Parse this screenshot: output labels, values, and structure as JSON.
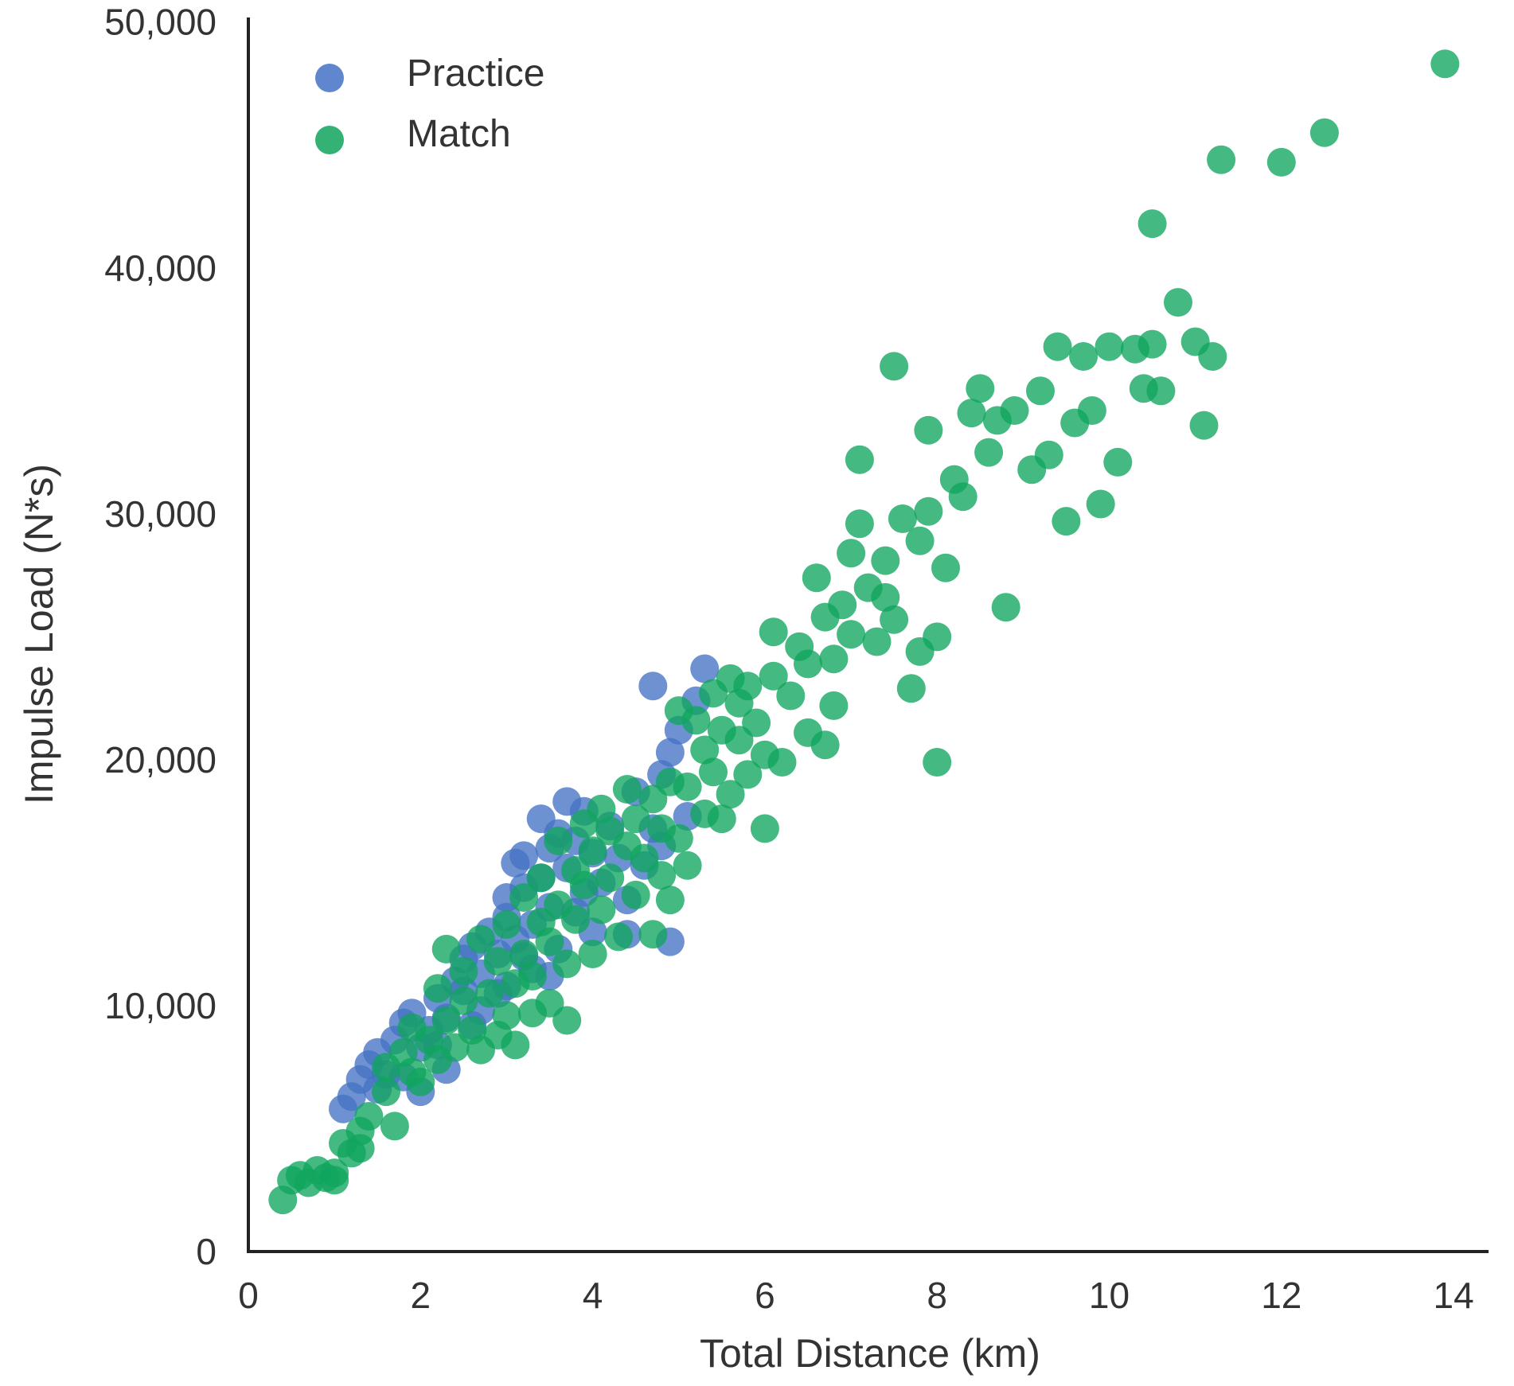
{
  "chart_data": {
    "type": "scatter",
    "xlabel": "Total Distance (km)",
    "ylabel": "Impulse Load (N*s)",
    "xlim": [
      0,
      14.6
    ],
    "ylim": [
      0,
      50800
    ],
    "x_ticks": [
      "0",
      "2",
      "4",
      "6",
      "8",
      "10",
      "12",
      "14"
    ],
    "y_ticks": [
      "0",
      "10,000",
      "20,000",
      "30,000",
      "40,000",
      "50,000"
    ],
    "x_tick_values": [
      0,
      2,
      4,
      6,
      8,
      10,
      12,
      14
    ],
    "y_tick_values": [
      0,
      10000,
      20000,
      30000,
      40000,
      50000
    ],
    "grid": false,
    "legend_position": "top-left",
    "series": [
      {
        "name": "Practice",
        "color": "#4472c4",
        "points": [
          [
            1.1,
            5800
          ],
          [
            1.2,
            6300
          ],
          [
            1.3,
            7000
          ],
          [
            1.4,
            7600
          ],
          [
            1.5,
            6600
          ],
          [
            1.5,
            8100
          ],
          [
            1.6,
            7200
          ],
          [
            1.7,
            8600
          ],
          [
            1.8,
            9300
          ],
          [
            1.9,
            9700
          ],
          [
            2.0,
            8300
          ],
          [
            2.0,
            6500
          ],
          [
            2.1,
            9000
          ],
          [
            2.2,
            10300
          ],
          [
            2.3,
            9500
          ],
          [
            2.3,
            7400
          ],
          [
            2.4,
            11000
          ],
          [
            2.5,
            10600
          ],
          [
            2.5,
            11900
          ],
          [
            2.6,
            12400
          ],
          [
            2.7,
            11300
          ],
          [
            2.7,
            9800
          ],
          [
            2.8,
            13000
          ],
          [
            2.9,
            12100
          ],
          [
            2.9,
            10500
          ],
          [
            3.0,
            14400
          ],
          [
            3.0,
            13600
          ],
          [
            3.1,
            15800
          ],
          [
            3.1,
            12700
          ],
          [
            3.2,
            16100
          ],
          [
            3.2,
            14800
          ],
          [
            3.3,
            13300
          ],
          [
            3.3,
            11500
          ],
          [
            3.4,
            17600
          ],
          [
            3.4,
            15200
          ],
          [
            3.5,
            16400
          ],
          [
            3.5,
            14000
          ],
          [
            3.6,
            17000
          ],
          [
            3.6,
            12300
          ],
          [
            3.7,
            18300
          ],
          [
            3.7,
            15600
          ],
          [
            3.8,
            16700
          ],
          [
            3.8,
            13800
          ],
          [
            3.9,
            17900
          ],
          [
            3.9,
            14600
          ],
          [
            4.0,
            16200
          ],
          [
            4.1,
            15000
          ],
          [
            4.2,
            17300
          ],
          [
            4.3,
            16000
          ],
          [
            4.4,
            14300
          ],
          [
            4.5,
            18700
          ],
          [
            4.6,
            15700
          ],
          [
            4.7,
            23000
          ],
          [
            4.7,
            17200
          ],
          [
            4.8,
            19400
          ],
          [
            4.8,
            16500
          ],
          [
            4.9,
            20300
          ],
          [
            4.9,
            12600
          ],
          [
            5.0,
            21200
          ],
          [
            5.1,
            17700
          ],
          [
            5.2,
            22400
          ],
          [
            5.3,
            23700
          ],
          [
            3.0,
            10800
          ],
          [
            2.6,
            9200
          ],
          [
            2.2,
            8400
          ],
          [
            1.8,
            7100
          ],
          [
            3.5,
            11200
          ],
          [
            4.0,
            13000
          ],
          [
            4.4,
            12900
          ],
          [
            3.2,
            12000
          ]
        ]
      },
      {
        "name": "Match",
        "color": "#10a55e",
        "points": [
          [
            0.4,
            2100
          ],
          [
            0.5,
            2900
          ],
          [
            0.6,
            3100
          ],
          [
            0.7,
            2800
          ],
          [
            0.8,
            3300
          ],
          [
            0.9,
            3000
          ],
          [
            1.0,
            3200
          ],
          [
            1.0,
            2900
          ],
          [
            1.1,
            4400
          ],
          [
            1.2,
            4000
          ],
          [
            1.3,
            4900
          ],
          [
            1.3,
            4200
          ],
          [
            1.4,
            5500
          ],
          [
            1.6,
            6500
          ],
          [
            1.6,
            7500
          ],
          [
            1.7,
            5100
          ],
          [
            1.8,
            8100
          ],
          [
            1.9,
            7300
          ],
          [
            1.9,
            9100
          ],
          [
            2.0,
            6900
          ],
          [
            2.1,
            8600
          ],
          [
            2.2,
            7800
          ],
          [
            2.2,
            10700
          ],
          [
            2.3,
            9400
          ],
          [
            2.3,
            12300
          ],
          [
            2.4,
            8300
          ],
          [
            2.5,
            10200
          ],
          [
            2.5,
            11400
          ],
          [
            2.6,
            9000
          ],
          [
            2.7,
            12700
          ],
          [
            2.7,
            8200
          ],
          [
            2.8,
            10500
          ],
          [
            2.9,
            11800
          ],
          [
            2.9,
            8800
          ],
          [
            3.0,
            9600
          ],
          [
            3.0,
            13300
          ],
          [
            3.1,
            10900
          ],
          [
            3.1,
            8400
          ],
          [
            3.2,
            12100
          ],
          [
            3.2,
            14400
          ],
          [
            3.3,
            11200
          ],
          [
            3.3,
            9700
          ],
          [
            3.4,
            13400
          ],
          [
            3.4,
            15200
          ],
          [
            3.5,
            12600
          ],
          [
            3.5,
            10100
          ],
          [
            3.6,
            14100
          ],
          [
            3.6,
            16700
          ],
          [
            3.7,
            11700
          ],
          [
            3.7,
            9400
          ],
          [
            3.8,
            15500
          ],
          [
            3.8,
            13500
          ],
          [
            3.9,
            17400
          ],
          [
            3.9,
            14900
          ],
          [
            4.0,
            12100
          ],
          [
            4.0,
            16300
          ],
          [
            4.1,
            18000
          ],
          [
            4.1,
            13900
          ],
          [
            4.2,
            15200
          ],
          [
            4.2,
            17100
          ],
          [
            4.3,
            12800
          ],
          [
            4.4,
            16500
          ],
          [
            4.4,
            18800
          ],
          [
            4.5,
            14500
          ],
          [
            4.5,
            17600
          ],
          [
            4.6,
            16000
          ],
          [
            4.7,
            18400
          ],
          [
            4.7,
            12900
          ],
          [
            4.8,
            15300
          ],
          [
            4.8,
            17200
          ],
          [
            4.9,
            19100
          ],
          [
            4.9,
            14300
          ],
          [
            5.0,
            16800
          ],
          [
            5.0,
            22000
          ],
          [
            5.1,
            18900
          ],
          [
            5.1,
            15700
          ],
          [
            5.2,
            21600
          ],
          [
            5.3,
            20400
          ],
          [
            5.3,
            17800
          ],
          [
            5.4,
            22700
          ],
          [
            5.4,
            19500
          ],
          [
            5.5,
            21200
          ],
          [
            5.5,
            17600
          ],
          [
            5.6,
            23300
          ],
          [
            5.6,
            18600
          ],
          [
            5.7,
            20800
          ],
          [
            5.7,
            22300
          ],
          [
            5.8,
            19400
          ],
          [
            5.8,
            23000
          ],
          [
            5.9,
            21500
          ],
          [
            6.0,
            17200
          ],
          [
            6.0,
            20200
          ],
          [
            6.1,
            25200
          ],
          [
            6.1,
            23400
          ],
          [
            6.2,
            19900
          ],
          [
            6.3,
            22600
          ],
          [
            6.4,
            24600
          ],
          [
            6.5,
            23900
          ],
          [
            6.5,
            21100
          ],
          [
            6.6,
            27400
          ],
          [
            6.7,
            25800
          ],
          [
            6.7,
            20600
          ],
          [
            6.8,
            24100
          ],
          [
            6.8,
            22200
          ],
          [
            6.9,
            26300
          ],
          [
            7.0,
            28400
          ],
          [
            7.0,
            25100
          ],
          [
            7.1,
            32200
          ],
          [
            7.1,
            29600
          ],
          [
            7.2,
            27000
          ],
          [
            7.3,
            24800
          ],
          [
            7.4,
            28100
          ],
          [
            7.4,
            26600
          ],
          [
            7.5,
            36000
          ],
          [
            7.5,
            25700
          ],
          [
            7.6,
            29800
          ],
          [
            7.7,
            22900
          ],
          [
            7.8,
            24400
          ],
          [
            7.8,
            28900
          ],
          [
            7.9,
            33400
          ],
          [
            7.9,
            30100
          ],
          [
            8.0,
            25000
          ],
          [
            8.0,
            19900
          ],
          [
            8.1,
            27800
          ],
          [
            8.2,
            31400
          ],
          [
            8.3,
            30700
          ],
          [
            8.4,
            34100
          ],
          [
            8.5,
            35100
          ],
          [
            8.6,
            32500
          ],
          [
            8.7,
            33800
          ],
          [
            8.8,
            26200
          ],
          [
            8.9,
            34200
          ],
          [
            9.1,
            31800
          ],
          [
            9.2,
            35000
          ],
          [
            9.3,
            32400
          ],
          [
            9.4,
            36800
          ],
          [
            9.5,
            29700
          ],
          [
            9.6,
            33700
          ],
          [
            9.7,
            36400
          ],
          [
            9.8,
            34200
          ],
          [
            9.9,
            30400
          ],
          [
            10.0,
            36800
          ],
          [
            10.1,
            32100
          ],
          [
            10.3,
            36700
          ],
          [
            10.4,
            35100
          ],
          [
            10.5,
            36900
          ],
          [
            10.5,
            41800
          ],
          [
            10.6,
            35000
          ],
          [
            10.8,
            38600
          ],
          [
            11.0,
            37000
          ],
          [
            11.1,
            33600
          ],
          [
            11.2,
            36400
          ],
          [
            11.3,
            44400
          ],
          [
            12.0,
            44300
          ],
          [
            12.5,
            45500
          ],
          [
            13.9,
            48300
          ]
        ]
      }
    ]
  }
}
